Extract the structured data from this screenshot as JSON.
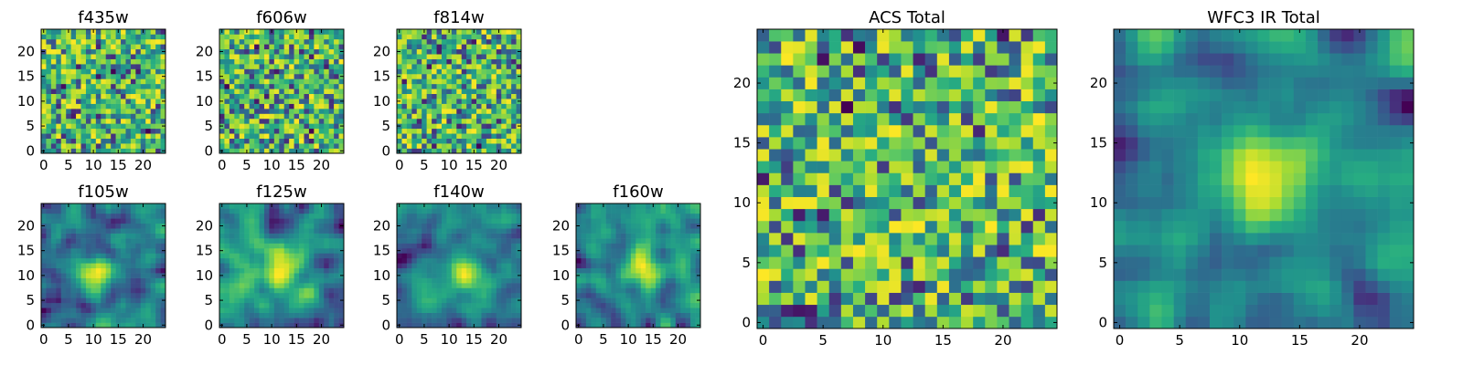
{
  "chart_data": [
    {
      "type": "heatmap",
      "title": "f435w",
      "xlim": [
        0,
        25
      ],
      "ylim": [
        0,
        25
      ],
      "xticks": [
        0,
        5,
        10,
        15,
        20
      ],
      "yticks": [
        0,
        5,
        10,
        15,
        20
      ],
      "grid": "off",
      "colormap": "viridis",
      "grid_size": [
        25,
        25
      ],
      "texture": "noisy",
      "seed": 11
    },
    {
      "type": "heatmap",
      "title": "f606w",
      "xlim": [
        0,
        25
      ],
      "ylim": [
        0,
        25
      ],
      "xticks": [
        0,
        5,
        10,
        15,
        20
      ],
      "yticks": [
        0,
        5,
        10,
        15,
        20
      ],
      "grid": "off",
      "colormap": "viridis",
      "grid_size": [
        25,
        25
      ],
      "texture": "noisy",
      "seed": 23
    },
    {
      "type": "heatmap",
      "title": "f814w",
      "xlim": [
        0,
        25
      ],
      "ylim": [
        0,
        25
      ],
      "xticks": [
        0,
        5,
        10,
        15,
        20
      ],
      "yticks": [
        0,
        5,
        10,
        15,
        20
      ],
      "grid": "off",
      "colormap": "viridis",
      "grid_size": [
        25,
        25
      ],
      "texture": "noisy",
      "seed": 37
    },
    {
      "type": "heatmap",
      "title": "f105w",
      "xlim": [
        0,
        25
      ],
      "ylim": [
        0,
        25
      ],
      "xticks": [
        0,
        5,
        10,
        15,
        20
      ],
      "yticks": [
        0,
        5,
        10,
        15,
        20
      ],
      "grid": "off",
      "colormap": "viridis",
      "grid_size": [
        25,
        25
      ],
      "texture": "smooth",
      "peak_center": [
        11,
        10
      ],
      "seed": 41
    },
    {
      "type": "heatmap",
      "title": "f125w",
      "xlim": [
        0,
        25
      ],
      "ylim": [
        0,
        25
      ],
      "xticks": [
        0,
        5,
        10,
        15,
        20
      ],
      "yticks": [
        0,
        5,
        10,
        15,
        20
      ],
      "grid": "off",
      "colormap": "viridis",
      "grid_size": [
        25,
        25
      ],
      "texture": "smooth",
      "peak_center": [
        12,
        11
      ],
      "seed": 53
    },
    {
      "type": "heatmap",
      "title": "f140w",
      "xlim": [
        0,
        25
      ],
      "ylim": [
        0,
        25
      ],
      "xticks": [
        0,
        5,
        10,
        15,
        20
      ],
      "yticks": [
        0,
        5,
        10,
        15,
        20
      ],
      "grid": "off",
      "colormap": "viridis",
      "grid_size": [
        25,
        25
      ],
      "texture": "smooth",
      "peak_center": [
        13,
        10
      ],
      "seed": 67
    },
    {
      "type": "heatmap",
      "title": "f160w",
      "xlim": [
        0,
        25
      ],
      "ylim": [
        0,
        25
      ],
      "xticks": [
        0,
        5,
        10,
        15,
        20
      ],
      "yticks": [
        0,
        5,
        10,
        15,
        20
      ],
      "grid": "off",
      "colormap": "viridis",
      "grid_size": [
        25,
        25
      ],
      "texture": "smooth",
      "peak_center": [
        13,
        12
      ],
      "seed": 79
    },
    {
      "type": "heatmap",
      "title": "ACS Total",
      "xlim": [
        0,
        25
      ],
      "ylim": [
        0,
        25
      ],
      "xticks": [
        0,
        5,
        10,
        15,
        20
      ],
      "yticks": [
        0,
        5,
        10,
        15,
        20
      ],
      "grid": "off",
      "colormap": "viridis",
      "grid_size": [
        25,
        25
      ],
      "texture": "blocky",
      "seed": 97
    },
    {
      "type": "heatmap",
      "title": "WFC3 IR Total",
      "xlim": [
        0,
        25
      ],
      "ylim": [
        0,
        25
      ],
      "xticks": [
        0,
        5,
        10,
        15,
        20
      ],
      "yticks": [
        0,
        5,
        10,
        15,
        20
      ],
      "grid": "off",
      "colormap": "viridis",
      "grid_size": [
        25,
        25
      ],
      "texture": "blocky-smooth",
      "peak_center": [
        12,
        12
      ],
      "seed": 113
    }
  ],
  "colors": {
    "viridis_dark": "#440154",
    "viridis_mid": "#21918c",
    "viridis_light": "#fde725",
    "axis": "#000000",
    "background": "#ffffff"
  }
}
